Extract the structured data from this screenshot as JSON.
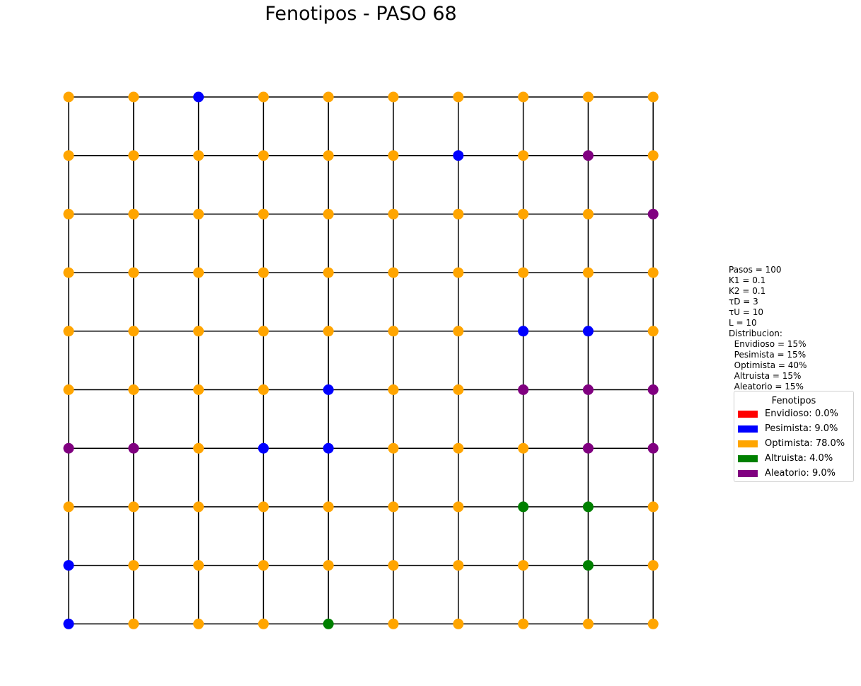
{
  "title": "Fenotipos - PASO 68",
  "parameters": [
    "Pasos = 100",
    "K1 = 0.1",
    "K2 = 0.1",
    "τD = 3",
    "τU = 10",
    "L = 10",
    "Distribucion:",
    "  Envidioso = 15%",
    "  Pesimista = 15%",
    "  Optimista = 40%",
    "  Altruista = 15%",
    "  Aleatorio = 15%"
  ],
  "legend": {
    "title": "Fenotipos",
    "items": [
      {
        "key": "E",
        "label": "Envidioso: 0.0%",
        "color": "#ff0000"
      },
      {
        "key": "P",
        "label": "Pesimista: 9.0%",
        "color": "#0000ff"
      },
      {
        "key": "O",
        "label": "Optimista: 78.0%",
        "color": "#ffa500"
      },
      {
        "key": "A",
        "label": "Altruista: 4.0%",
        "color": "#008000"
      },
      {
        "key": "R",
        "label": "Aleatorio: 9.0%",
        "color": "#800080"
      }
    ]
  },
  "colors": {
    "E": "#ff0000",
    "P": "#0000ff",
    "O": "#ffa500",
    "A": "#008000",
    "R": "#800080",
    "edge": "#000000"
  },
  "grid": [
    [
      "O",
      "O",
      "P",
      "O",
      "O",
      "O",
      "O",
      "O",
      "O",
      "O"
    ],
    [
      "O",
      "O",
      "O",
      "O",
      "O",
      "O",
      "P",
      "O",
      "R",
      "O"
    ],
    [
      "O",
      "O",
      "O",
      "O",
      "O",
      "O",
      "O",
      "O",
      "O",
      "R"
    ],
    [
      "O",
      "O",
      "O",
      "O",
      "O",
      "O",
      "O",
      "O",
      "O",
      "O"
    ],
    [
      "O",
      "O",
      "O",
      "O",
      "O",
      "O",
      "O",
      "P",
      "P",
      "O"
    ],
    [
      "O",
      "O",
      "O",
      "O",
      "P",
      "O",
      "O",
      "R",
      "R",
      "R"
    ],
    [
      "R",
      "R",
      "O",
      "P",
      "P",
      "O",
      "O",
      "O",
      "R",
      "R"
    ],
    [
      "O",
      "O",
      "O",
      "O",
      "O",
      "O",
      "O",
      "A",
      "A",
      "O"
    ],
    [
      "P",
      "O",
      "O",
      "O",
      "O",
      "O",
      "O",
      "O",
      "A",
      "O"
    ],
    [
      "P",
      "O",
      "O",
      "O",
      "A",
      "O",
      "O",
      "O",
      "O",
      "O"
    ]
  ]
}
